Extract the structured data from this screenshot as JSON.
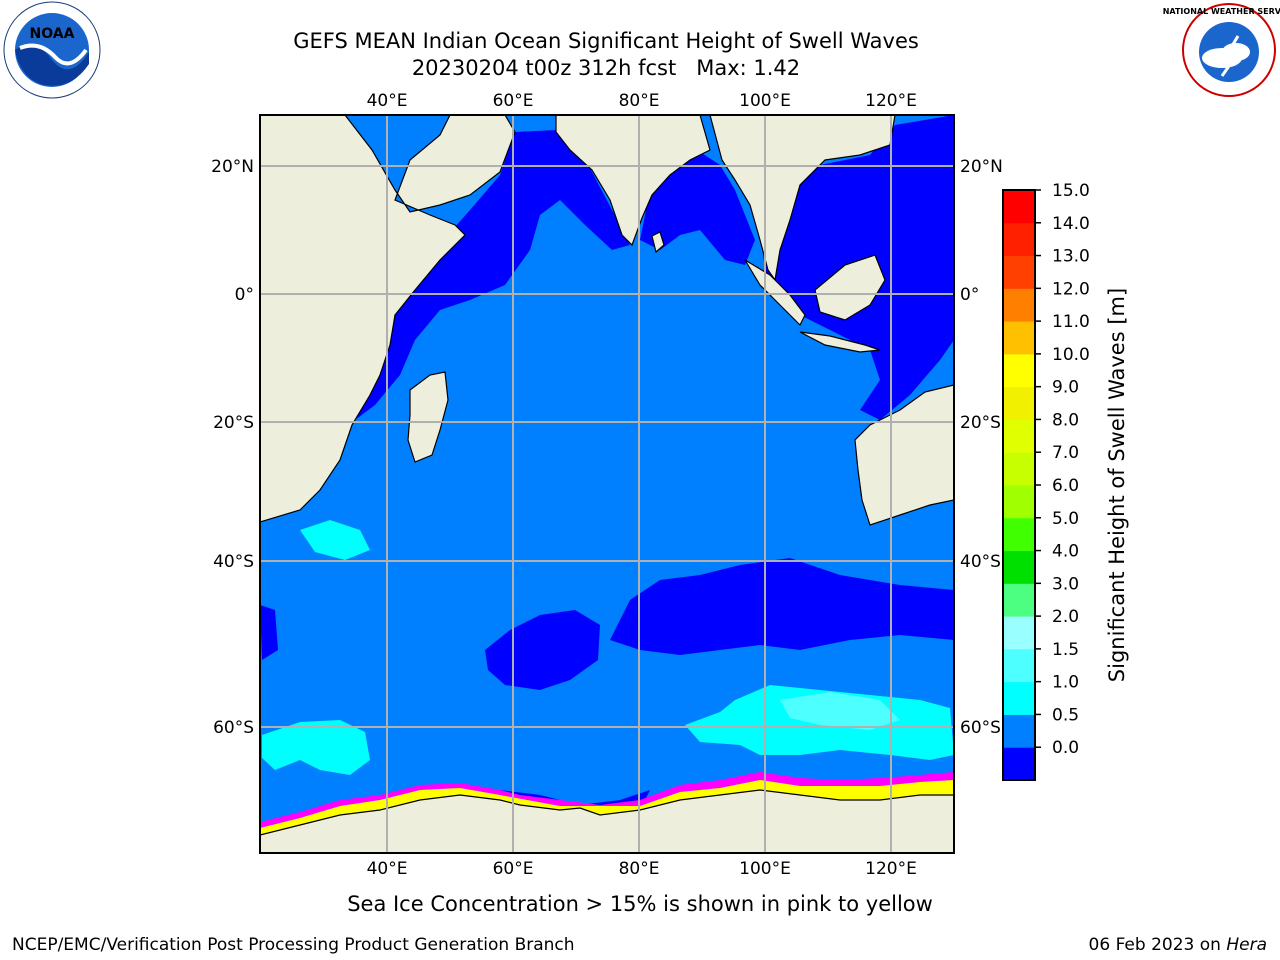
{
  "title": {
    "line1": "GEFS MEAN Indian Ocean Significant Height of Swell Waves",
    "line2": "20230204 t00z 312h fcst   Max: 1.42"
  },
  "logos": {
    "left": {
      "icon": "noaa-logo",
      "text": "NOAA"
    },
    "right": {
      "icon": "national-weather-service-logo",
      "text": "NATIONAL WEATHER SERVICE"
    }
  },
  "map": {
    "longitude_labels": [
      "40°E",
      "60°E",
      "80°E",
      "100°E",
      "120°E"
    ],
    "latitude_labels": [
      "20°N",
      "0°",
      "20°S",
      "40°S",
      "60°S"
    ],
    "colors": {
      "land": "#eeeedd",
      "ocean_0_05": "#0000ff",
      "ocean_05_10": "#0080ff",
      "ocean_10_15": "#00ffff",
      "ocean_15_20": "#4dffff",
      "sea_ice": [
        "#ff00ff",
        "#ff80c0",
        "#ffff00"
      ],
      "grid": "#b0b0b0"
    }
  },
  "colorbar": {
    "label": "Significant Height of Swell Waves [m]",
    "tick_labels": [
      "15.0",
      "14.0",
      "13.0",
      "12.0",
      "11.0",
      "10.0",
      "9.0",
      "8.0",
      "7.0",
      "6.0",
      "5.0",
      "4.0",
      "3.0",
      "2.0",
      "1.5",
      "1.0",
      "0.5",
      "0.0"
    ],
    "colors_bottom_to_top": [
      "#0000ff",
      "#0080ff",
      "#00ffff",
      "#4dffff",
      "#99ffff",
      "#4dff80",
      "#00e000",
      "#40ff00",
      "#a0ff00",
      "#c8ff00",
      "#e0ff00",
      "#f0f000",
      "#ffff00",
      "#ffc000",
      "#ff8000",
      "#ff4000",
      "#ff2000",
      "#ff0000"
    ]
  },
  "caption": "Sea Ice Concentration > 15% is shown in pink to yellow",
  "footer": {
    "left": "NCEP/EMC/Verification Post Processing Product Generation Branch",
    "right_prefix": "06 Feb 2023 on ",
    "right_host": "Hera"
  }
}
